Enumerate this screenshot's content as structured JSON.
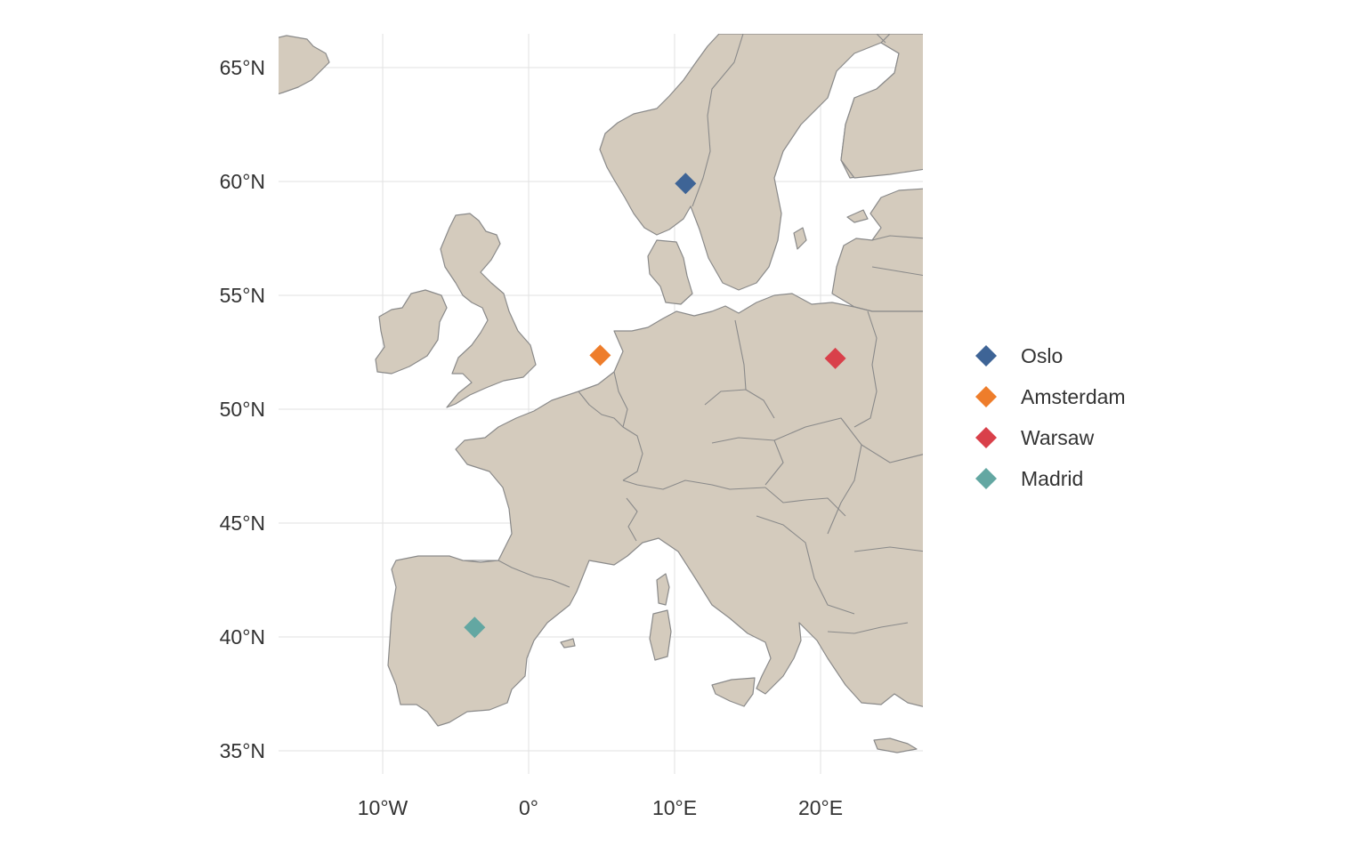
{
  "chart_data": {
    "type": "map",
    "title": "",
    "xlabel": "",
    "ylabel": "",
    "lon_range": [
      -15,
      27
    ],
    "lat_range": [
      34,
      66.5
    ],
    "x_ticks": [
      {
        "lon": -10,
        "label": "10°W"
      },
      {
        "lon": 0,
        "label": "0°"
      },
      {
        "lon": 10,
        "label": "10°E"
      },
      {
        "lon": 20,
        "label": "20°E"
      }
    ],
    "y_ticks": [
      {
        "lat": 35,
        "label": "35°N"
      },
      {
        "lat": 40,
        "label": "40°N"
      },
      {
        "lat": 45,
        "label": "45°N"
      },
      {
        "lat": 50,
        "label": "50°N"
      },
      {
        "lat": 55,
        "label": "55°N"
      },
      {
        "lat": 60,
        "label": "60°N"
      },
      {
        "lat": 65,
        "label": "65°N"
      }
    ],
    "grid": true,
    "legend_position": "right",
    "land_color": "#d4cbbd",
    "border_color": "#8a8a8a",
    "points": [
      {
        "name": "Oslo",
        "lon": 10.75,
        "lat": 59.91,
        "color": "#3e6496",
        "shape": "diamond"
      },
      {
        "name": "Amsterdam",
        "lon": 4.9,
        "lat": 52.37,
        "color": "#ee7d2b",
        "shape": "diamond"
      },
      {
        "name": "Warsaw",
        "lon": 21.01,
        "lat": 52.23,
        "color": "#d9404a",
        "shape": "diamond"
      },
      {
        "name": "Madrid",
        "lon": -3.7,
        "lat": 40.42,
        "color": "#63a7a2",
        "shape": "diamond"
      }
    ]
  }
}
